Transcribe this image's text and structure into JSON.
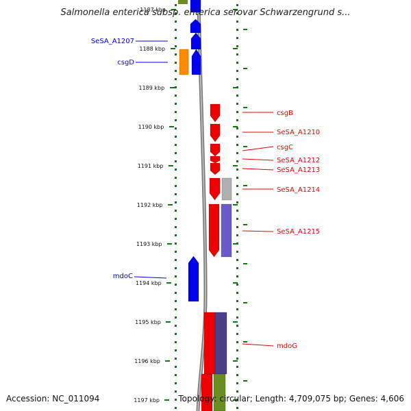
{
  "header": {
    "title": "Salmonella enterica subsp. enterica serovar Schwarzengrund s..."
  },
  "footer": {
    "accession": "Accession: NC_011094",
    "summary": "Topology: circular; Length: 4,709,075 bp; Genes: 4,606"
  },
  "colors": {
    "forward_strand": "#0000ee",
    "reverse_strand": "#ee0000",
    "grid_green": "#117711",
    "orange": "#ff8c00",
    "gray": "#b0b0b0",
    "purple": "#6a5acd",
    "olive": "#6b8e23"
  },
  "axis": {
    "ticks": [
      "1187 kbp",
      "1188 kbp",
      "1189 kbp",
      "1190 kbp",
      "1191 kbp",
      "1192 kbp",
      "1193 kbp",
      "1194 kbp",
      "1195 kbp",
      "1196 kbp",
      "1197 kbp"
    ]
  },
  "left_labels": [
    {
      "id": "sesa-a1207",
      "text": "SeSA_A1207"
    },
    {
      "id": "csgd",
      "text": "csgD"
    },
    {
      "id": "mdoc",
      "text": "mdoC"
    }
  ],
  "right_labels": [
    {
      "id": "csgb",
      "text": "csgB"
    },
    {
      "id": "sesa-a1210",
      "text": "SeSA_A1210"
    },
    {
      "id": "csgc",
      "text": "csgC"
    },
    {
      "id": "sesa-a1212",
      "text": "SeSA_A1212"
    },
    {
      "id": "sesa-a1213",
      "text": "SeSA_A1213"
    },
    {
      "id": "sesa-a1214",
      "text": "SeSA_A1214"
    },
    {
      "id": "sesa-a1215",
      "text": "SeSA_A1215"
    },
    {
      "id": "mdog",
      "text": "mdoG"
    }
  ]
}
